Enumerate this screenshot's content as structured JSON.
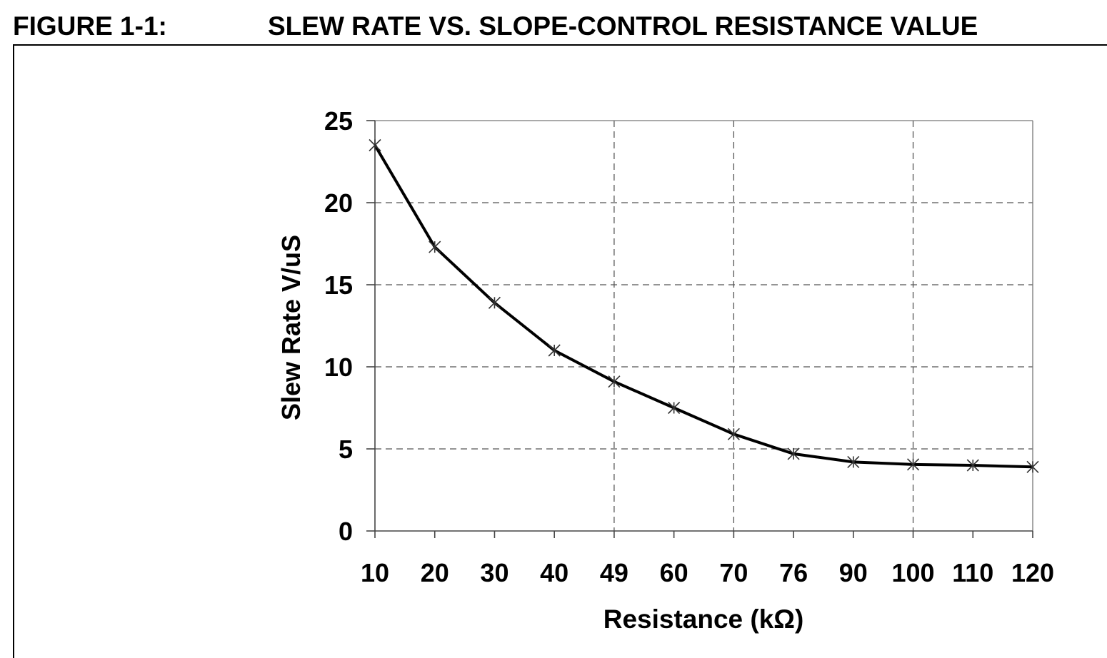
{
  "figure": {
    "number": "FIGURE 1-1:",
    "title": "SLEW RATE VS. SLOPE-CONTROL RESISTANCE VALUE"
  },
  "chart_data": {
    "type": "line",
    "xlabel": "Resistance (kΩ)",
    "ylabel": "Slew Rate V/uS",
    "categories": [
      "10",
      "20",
      "30",
      "40",
      "49",
      "60",
      "70",
      "76",
      "90",
      "100",
      "110",
      "120"
    ],
    "series": [
      {
        "values": [
          23.5,
          17.3,
          13.9,
          11.0,
          9.1,
          7.5,
          5.9,
          4.7,
          4.2,
          4.05,
          4.0,
          3.9
        ]
      }
    ],
    "ylim": [
      0,
      25
    ],
    "yticks": [
      0,
      5,
      10,
      15,
      20,
      25
    ],
    "grid": {
      "horizontal": true,
      "vertical_at_categories": [
        "49",
        "70",
        "100"
      ],
      "style": "dashed"
    },
    "marker": "asterisk",
    "line_color": "#000000",
    "marker_color": "#333333"
  }
}
